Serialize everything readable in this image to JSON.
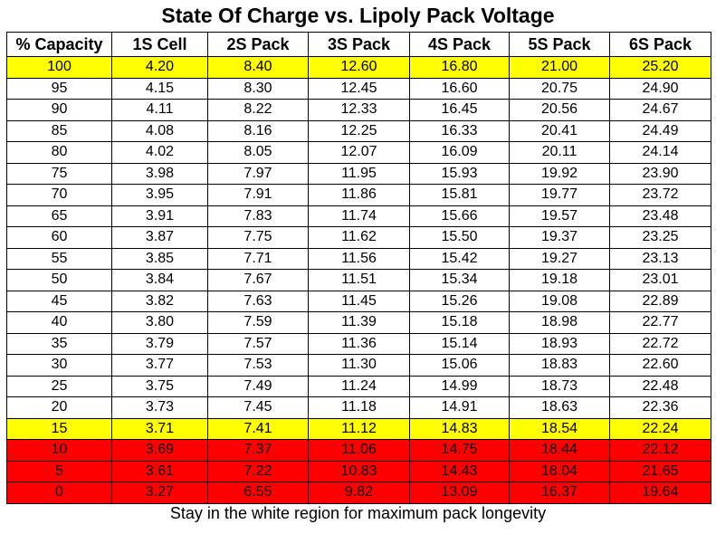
{
  "title": "State Of Charge vs. Lipoly Pack Voltage",
  "footer": "Stay in the white region for maximum pack longevity",
  "colors": {
    "highlight_yellow": "#ffff00",
    "danger_red": "#ff0000",
    "normal_white": "#ffffff"
  },
  "headers": [
    "% Capacity",
    "1S Cell",
    "2S Pack",
    "3S Pack",
    "4S Pack",
    "5S Pack",
    "6S Pack"
  ],
  "rows": [
    {
      "zone": "yellow",
      "cells": [
        "100",
        "4.20",
        "8.40",
        "12.60",
        "16.80",
        "21.00",
        "25.20"
      ]
    },
    {
      "zone": "white",
      "cells": [
        "95",
        "4.15",
        "8.30",
        "12.45",
        "16.60",
        "20.75",
        "24.90"
      ]
    },
    {
      "zone": "white",
      "cells": [
        "90",
        "4.11",
        "8.22",
        "12.33",
        "16.45",
        "20.56",
        "24.67"
      ]
    },
    {
      "zone": "white",
      "cells": [
        "85",
        "4.08",
        "8.16",
        "12.25",
        "16.33",
        "20.41",
        "24.49"
      ]
    },
    {
      "zone": "white",
      "cells": [
        "80",
        "4.02",
        "8.05",
        "12.07",
        "16.09",
        "20.11",
        "24.14"
      ]
    },
    {
      "zone": "white",
      "cells": [
        "75",
        "3.98",
        "7.97",
        "11.95",
        "15.93",
        "19.92",
        "23.90"
      ]
    },
    {
      "zone": "white",
      "cells": [
        "70",
        "3.95",
        "7.91",
        "11.86",
        "15.81",
        "19.77",
        "23.72"
      ]
    },
    {
      "zone": "white",
      "cells": [
        "65",
        "3.91",
        "7.83",
        "11.74",
        "15.66",
        "19.57",
        "23.48"
      ]
    },
    {
      "zone": "white",
      "cells": [
        "60",
        "3.87",
        "7.75",
        "11.62",
        "15.50",
        "19.37",
        "23.25"
      ]
    },
    {
      "zone": "white",
      "cells": [
        "55",
        "3.85",
        "7.71",
        "11.56",
        "15.42",
        "19.27",
        "23.13"
      ]
    },
    {
      "zone": "white",
      "cells": [
        "50",
        "3.84",
        "7.67",
        "11.51",
        "15.34",
        "19.18",
        "23.01"
      ]
    },
    {
      "zone": "white",
      "cells": [
        "45",
        "3.82",
        "7.63",
        "11.45",
        "15.26",
        "19.08",
        "22.89"
      ]
    },
    {
      "zone": "white",
      "cells": [
        "40",
        "3.80",
        "7.59",
        "11.39",
        "15.18",
        "18.98",
        "22.77"
      ]
    },
    {
      "zone": "white",
      "cells": [
        "35",
        "3.79",
        "7.57",
        "11.36",
        "15.14",
        "18.93",
        "22.72"
      ]
    },
    {
      "zone": "white",
      "cells": [
        "30",
        "3.77",
        "7.53",
        "11.30",
        "15.06",
        "18.83",
        "22.60"
      ]
    },
    {
      "zone": "white",
      "cells": [
        "25",
        "3.75",
        "7.49",
        "11.24",
        "14.99",
        "18.73",
        "22.48"
      ]
    },
    {
      "zone": "white",
      "cells": [
        "20",
        "3.73",
        "7.45",
        "11.18",
        "14.91",
        "18.63",
        "22.36"
      ]
    },
    {
      "zone": "yellow",
      "cells": [
        "15",
        "3.71",
        "7.41",
        "11.12",
        "14.83",
        "18.54",
        "22.24"
      ]
    },
    {
      "zone": "red",
      "cells": [
        "10",
        "3.69",
        "7.37",
        "11.06",
        "14.75",
        "18.44",
        "22.12"
      ]
    },
    {
      "zone": "red",
      "cells": [
        "5",
        "3.61",
        "7.22",
        "10.83",
        "14.43",
        "18.04",
        "21.65"
      ]
    },
    {
      "zone": "red",
      "cells": [
        "0",
        "3.27",
        "6.55",
        "9.82",
        "13.09",
        "16.37",
        "19.64"
      ]
    }
  ]
}
